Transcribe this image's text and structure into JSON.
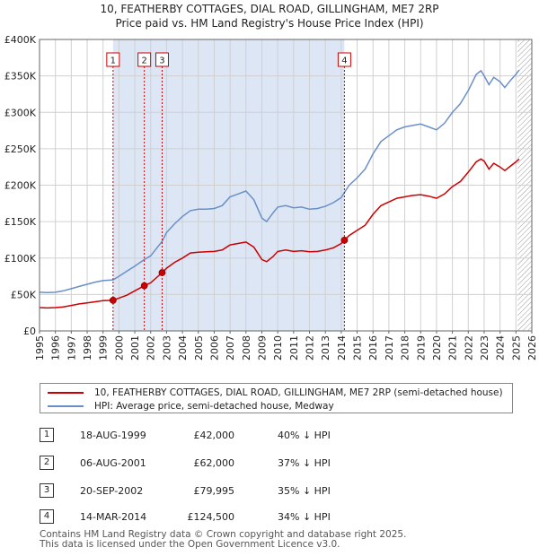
{
  "title_line1": "10, FEATHERBY COTTAGES, DIAL ROAD, GILLINGHAM, ME7 2RP",
  "title_line2": "Price paid vs. HM Land Registry's House Price Index (HPI)",
  "legend": {
    "property_label": "10, FEATHERBY COTTAGES, DIAL ROAD, GILLINGHAM, ME7 2RP (semi-detached house)",
    "hpi_label": "HPI: Average price, semi-detached house, Medway"
  },
  "colors": {
    "property": "#cc0000",
    "hpi": "#6a8fc8",
    "shade": "#dce6f5",
    "grid": "#d0d0d0",
    "hatch": "#999999"
  },
  "transactions": [
    {
      "num": "1",
      "date": "18-AUG-1999",
      "price": "£42,000",
      "hpi": "40% ↓ HPI"
    },
    {
      "num": "2",
      "date": "06-AUG-2001",
      "price": "£62,000",
      "hpi": "37% ↓ HPI"
    },
    {
      "num": "3",
      "date": "20-SEP-2002",
      "price": "£79,995",
      "hpi": "35% ↓ HPI"
    },
    {
      "num": "4",
      "date": "14-MAR-2014",
      "price": "£124,500",
      "hpi": "34% ↓ HPI"
    }
  ],
  "footer": {
    "line1": "Contains HM Land Registry data © Crown copyright and database right 2025.",
    "line2": "This data is licensed under the Open Government Licence v3.0."
  },
  "chart_data": {
    "type": "line",
    "xlim": [
      1995,
      2026
    ],
    "ylim": [
      0,
      400000
    ],
    "y_ticks": [
      0,
      50000,
      100000,
      150000,
      200000,
      250000,
      300000,
      350000,
      400000
    ],
    "y_tick_labels": [
      "£0",
      "£50K",
      "£100K",
      "£150K",
      "£200K",
      "£250K",
      "£300K",
      "£350K",
      "£400K"
    ],
    "x_ticks": [
      1995,
      1996,
      1997,
      1998,
      1999,
      2000,
      2001,
      2002,
      2003,
      2004,
      2005,
      2006,
      2007,
      2008,
      2009,
      2010,
      2011,
      2012,
      2013,
      2014,
      2015,
      2016,
      2017,
      2018,
      2019,
      2020,
      2021,
      2022,
      2023,
      2024,
      2025,
      2026
    ],
    "x_tick_labels": [
      "1995",
      "1996",
      "1997",
      "1998",
      "1999",
      "2000",
      "2001",
      "2002",
      "2003",
      "2004",
      "2005",
      "2006",
      "2007",
      "2008",
      "2009",
      "2010",
      "2011",
      "2012",
      "2013",
      "2014",
      "2015",
      "2016",
      "2017",
      "2018",
      "2019",
      "2020",
      "2021",
      "2022",
      "2023",
      "2024",
      "2025",
      "2026"
    ],
    "grid": true,
    "shaded_ranges": [
      [
        1999.63,
        2014.2
      ]
    ],
    "future_hatch_from": 2025.1,
    "series": [
      {
        "name": "10, FEATHERBY COTTAGES, DIAL ROAD, GILLINGHAM, ME7 2RP (semi-detached house)",
        "x": [
          1995,
          1995.5,
          1996,
          1996.5,
          1997,
          1997.5,
          1998,
          1998.5,
          1999,
          1999.63,
          2000,
          2000.5,
          2001,
          2001.6,
          2002,
          2002.72,
          2003,
          2003.5,
          2004,
          2004.5,
          2005,
          2005.5,
          2006,
          2006.5,
          2007,
          2007.5,
          2008,
          2008.5,
          2009,
          2009.3,
          2009.7,
          2010,
          2010.5,
          2011,
          2011.5,
          2012,
          2012.5,
          2013,
          2013.5,
          2014,
          2014.2,
          2014.5,
          2015,
          2015.5,
          2016,
          2016.5,
          2017,
          2017.5,
          2018,
          2018.5,
          2019,
          2019.5,
          2020,
          2020.5,
          2021,
          2021.5,
          2022,
          2022.5,
          2022.8,
          2023,
          2023.3,
          2023.6,
          2024,
          2024.3,
          2024.7,
          2025,
          2025.2
        ],
        "y": [
          32000,
          31500,
          32000,
          33000,
          35000,
          37000,
          38500,
          40000,
          41500,
          42000,
          45000,
          49000,
          55000,
          62000,
          66000,
          79995,
          86000,
          94000,
          100000,
          107000,
          108000,
          108500,
          109000,
          111000,
          118000,
          120000,
          122000,
          115000,
          98000,
          95000,
          102000,
          109000,
          111000,
          109000,
          110000,
          108500,
          109000,
          111000,
          114000,
          120000,
          124500,
          131000,
          138000,
          145000,
          160000,
          172000,
          177000,
          182000,
          184000,
          186000,
          187000,
          185000,
          182000,
          188000,
          198000,
          205000,
          218000,
          232000,
          236000,
          233000,
          222000,
          230000,
          225000,
          220000,
          227000,
          232000,
          236000
        ]
      },
      {
        "name": "HPI: Average price, semi-detached house, Medway",
        "x": [
          1995,
          1995.5,
          1996,
          1996.5,
          1997,
          1997.5,
          1998,
          1998.5,
          1999,
          1999.63,
          2000,
          2000.5,
          2001,
          2001.6,
          2002,
          2002.72,
          2003,
          2003.5,
          2004,
          2004.5,
          2005,
          2005.5,
          2006,
          2006.5,
          2007,
          2007.5,
          2008,
          2008.5,
          2009,
          2009.3,
          2009.7,
          2010,
          2010.5,
          2011,
          2011.5,
          2012,
          2012.5,
          2013,
          2013.5,
          2014,
          2014.2,
          2014.5,
          2015,
          2015.5,
          2016,
          2016.5,
          2017,
          2017.5,
          2018,
          2018.5,
          2019,
          2019.5,
          2020,
          2020.5,
          2021,
          2021.5,
          2022,
          2022.5,
          2022.8,
          2023,
          2023.3,
          2023.6,
          2024,
          2024.3,
          2024.7,
          2025,
          2025.2
        ],
        "y": [
          53000,
          52500,
          53000,
          55000,
          58000,
          61000,
          64000,
          67000,
          69000,
          70000,
          75000,
          82000,
          89000,
          98000,
          103000,
          123000,
          135000,
          147000,
          157000,
          165000,
          167000,
          167000,
          168000,
          172000,
          184000,
          188000,
          192000,
          180000,
          155000,
          150000,
          162000,
          170000,
          172000,
          169000,
          170000,
          167000,
          168000,
          171000,
          176000,
          183000,
          190000,
          200000,
          210000,
          222000,
          243000,
          260000,
          268000,
          276000,
          280000,
          282000,
          284000,
          280000,
          276000,
          285000,
          300000,
          312000,
          330000,
          352000,
          357000,
          350000,
          338000,
          348000,
          342000,
          334000,
          345000,
          352000,
          358000
        ]
      }
    ],
    "sale_points": [
      {
        "label": "1",
        "x": 1999.63,
        "y": 42000
      },
      {
        "label": "2",
        "x": 2001.6,
        "y": 62000
      },
      {
        "label": "3",
        "x": 2002.72,
        "y": 79995
      },
      {
        "label": "4",
        "x": 2014.2,
        "y": 124500
      }
    ]
  }
}
